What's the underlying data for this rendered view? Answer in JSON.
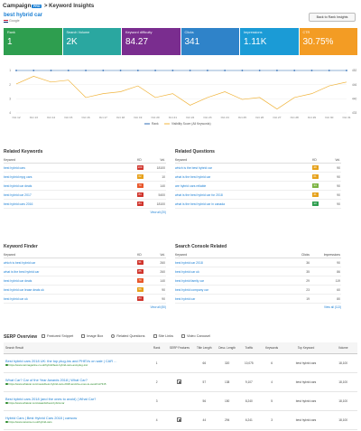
{
  "header": {
    "logo_text": "Campaign",
    "logo_badge": "PRO",
    "breadcrumb": "> Keyword Insights",
    "keyword": "best hybrid car",
    "engine": "Google",
    "back_button": "Back to Rank Insights"
  },
  "tiles": [
    {
      "label": "Rank",
      "value": "1",
      "color": "#2e9e4f"
    },
    {
      "label": "Search Volume",
      "value": "2K",
      "color": "#2aa7a0"
    },
    {
      "label": "Keyword difficulty",
      "value": "84.27",
      "color": "#7a2d8f"
    },
    {
      "label": "Clicks",
      "value": "341",
      "color": "#2f83c9"
    },
    {
      "label": "Impressions",
      "value": "1.11K",
      "color": "#1b9bd6"
    },
    {
      "label": "CTR",
      "value": "30.75%",
      "color": "#f39c24"
    }
  ],
  "chart_data": {
    "type": "line",
    "x": [
      "Oct 12",
      "Oct 13",
      "Oct 14",
      "Oct 15",
      "Oct 16",
      "Oct 17",
      "Oct 18",
      "Oct 19",
      "Oct 20",
      "Oct 21",
      "Oct 22",
      "Oct 23",
      "Oct 24",
      "Oct 25",
      "Oct 26",
      "Oct 27",
      "Oct 28",
      "Oct 29",
      "Oct 30",
      "Oct 31"
    ],
    "series": [
      {
        "name": "Rank",
        "axis": "left",
        "color": "#2f6db5",
        "values": [
          1,
          1,
          1,
          1,
          1,
          1,
          1,
          1,
          1,
          1,
          1,
          1,
          1,
          1,
          1,
          1,
          1,
          1,
          1,
          1
        ]
      },
      {
        "name": "Visibility Score (All Keywords)",
        "axis": "right",
        "color": "#f0b43c",
        "values": [
          445,
          449,
          446,
          447,
          438,
          440,
          441,
          444,
          438,
          440,
          434,
          438,
          441,
          437,
          438,
          432,
          438,
          440,
          444,
          446
        ]
      }
    ],
    "left_ticks": [
      "1",
      "2",
      "3",
      "4"
    ],
    "right_ticks": [
      "452",
      "446",
      "440",
      "433"
    ],
    "left_range": [
      1,
      4
    ],
    "right_range": [
      430,
      452
    ],
    "legend_position": "bottom"
  },
  "related_keywords": {
    "title": "Related Keywords",
    "cols": [
      "Keyword",
      "KD",
      "Vol."
    ],
    "rows": [
      {
        "kw": "best hybrid cars",
        "kd": "100",
        "kdcolor": "#d0342c",
        "vol": "18100"
      },
      {
        "kw": "best hybrid mpg cars",
        "kd": "62",
        "kdcolor": "#e6a11a",
        "vol": "10"
      },
      {
        "kw": "best hybrid car deals",
        "kd": "70",
        "kdcolor": "#e8562a",
        "vol": "140"
      },
      {
        "kw": "best hybrid car 2017",
        "kd": "84",
        "kdcolor": "#d0342c",
        "vol": "5400"
      },
      {
        "kw": "best hybrid cars 2016",
        "kd": "84",
        "kdcolor": "#d0342c",
        "vol": "18100"
      }
    ],
    "view_all": "View all (20)"
  },
  "related_questions": {
    "title": "Related Questions",
    "cols": [
      "Keyword",
      "KD",
      "Vol."
    ],
    "rows": [
      {
        "kw": "which is the best hybrid car",
        "kd": "49",
        "kdcolor": "#e6a11a",
        "vol": "90"
      },
      {
        "kw": "what is the best hybrid car",
        "kd": "61",
        "kdcolor": "#e6a11a",
        "vol": "90"
      },
      {
        "kw": "are hybrid cars reliable",
        "kd": "34",
        "kdcolor": "#7cb342",
        "vol": "90"
      },
      {
        "kw": "what is the best hybrid car for 2018",
        "kd": "41",
        "kdcolor": "#e6a11a",
        "vol": "90"
      },
      {
        "kw": "what is the best hybrid car in canada",
        "kd": "13",
        "kdcolor": "#2e9e4f",
        "vol": "90"
      }
    ]
  },
  "keyword_finder": {
    "title": "Keyword Finder",
    "cols": [
      "Keyword",
      "KD",
      "Vol."
    ],
    "rows": [
      {
        "kw": "which is best hybrid car",
        "kd": "91",
        "kdcolor": "#d0342c",
        "vol": "260"
      },
      {
        "kw": "what is the best hybrid car",
        "kd": "85",
        "kdcolor": "#d0342c",
        "vol": "260"
      },
      {
        "kw": "best hybrid car deals",
        "kd": "70",
        "kdcolor": "#e8562a",
        "vol": "140"
      },
      {
        "kw": "best hybrid car lease deals uk",
        "kd": "56",
        "kdcolor": "#e6a11a",
        "vol": "90"
      },
      {
        "kw": "best hybrid car uk",
        "kd": "83",
        "kdcolor": "#d0342c",
        "vol": "90"
      }
    ],
    "view_all": "View all (50)"
  },
  "search_console": {
    "title": "Search Console Related",
    "cols": [
      "Keyword",
      "Clicks",
      "Impressions"
    ],
    "rows": [
      {
        "kw": "best hybrid car 2018",
        "clicks": "36",
        "imp": "90"
      },
      {
        "kw": "best hybrid car uk",
        "clicks": "35",
        "imp": "86"
      },
      {
        "kw": "best hybrid family car",
        "clicks": "29",
        "imp": "119"
      },
      {
        "kw": "best hybrid company car",
        "clicks": "23",
        "imp": "60"
      },
      {
        "kw": "best hybrid car",
        "clicks": "19",
        "imp": "80"
      }
    ],
    "view_all": "View all (113)"
  },
  "serp": {
    "title": "SERP Overview",
    "tabs": [
      "Featured Snippet",
      "Image Box",
      "Related Questions",
      "Site Links",
      "Video Carousel"
    ],
    "cols": [
      "Search Result",
      "Rank",
      "SERP Features",
      "Title Length",
      "Desc. Length",
      "Traffic",
      "Keywords",
      "Top Keyword",
      "Volume"
    ],
    "rows": [
      {
        "title": "Best hybrid cars 2018 UK: the top plug-ins and PHEVs on sale | CAR ...",
        "url": "https://www.carmagazine.co.uk/hybrid/best-hybrid-cars-and-plug-ins/",
        "rank": "1",
        "feature": false,
        "tlen": "66",
        "dlen": "320",
        "traffic": "10,075",
        "keywords": "6",
        "top": "best hybrid cars",
        "vol": "18,100"
      },
      {
        "title": "What Car? Car of the Year Awards 2018 | What Car?",
        "url": "https://www.whatcar.com/news/best-hybrid-cars-2018-and-the-ones-to-avoid/n17315",
        "rank": "2",
        "feature": true,
        "tlen": "57",
        "dlen": "138",
        "traffic": "9,107",
        "keywords": "4",
        "top": "best hybrid cars",
        "vol": "18,100"
      },
      {
        "title": "Best hybrid cars 2018 (and the ones to avoid) | What Car?",
        "url": "https://www.whatcar.com/awards/best-hybrid-car",
        "rank": "3",
        "feature": false,
        "tlen": "56",
        "dlen": "150",
        "traffic": "8,240",
        "keywords": "5",
        "top": "best hybrid cars",
        "vol": "18,100"
      },
      {
        "title": "Hybrid Cars | Best Hybrid Cars 2018 | carwow",
        "url": "https://www.carwow.co.uk/hybrid-cars",
        "rank": "4",
        "feature": true,
        "tlen": "44",
        "dlen": "294",
        "traffic": "6,241",
        "keywords": "3",
        "top": "best hybrid cars",
        "vol": "18,100"
      }
    ]
  }
}
